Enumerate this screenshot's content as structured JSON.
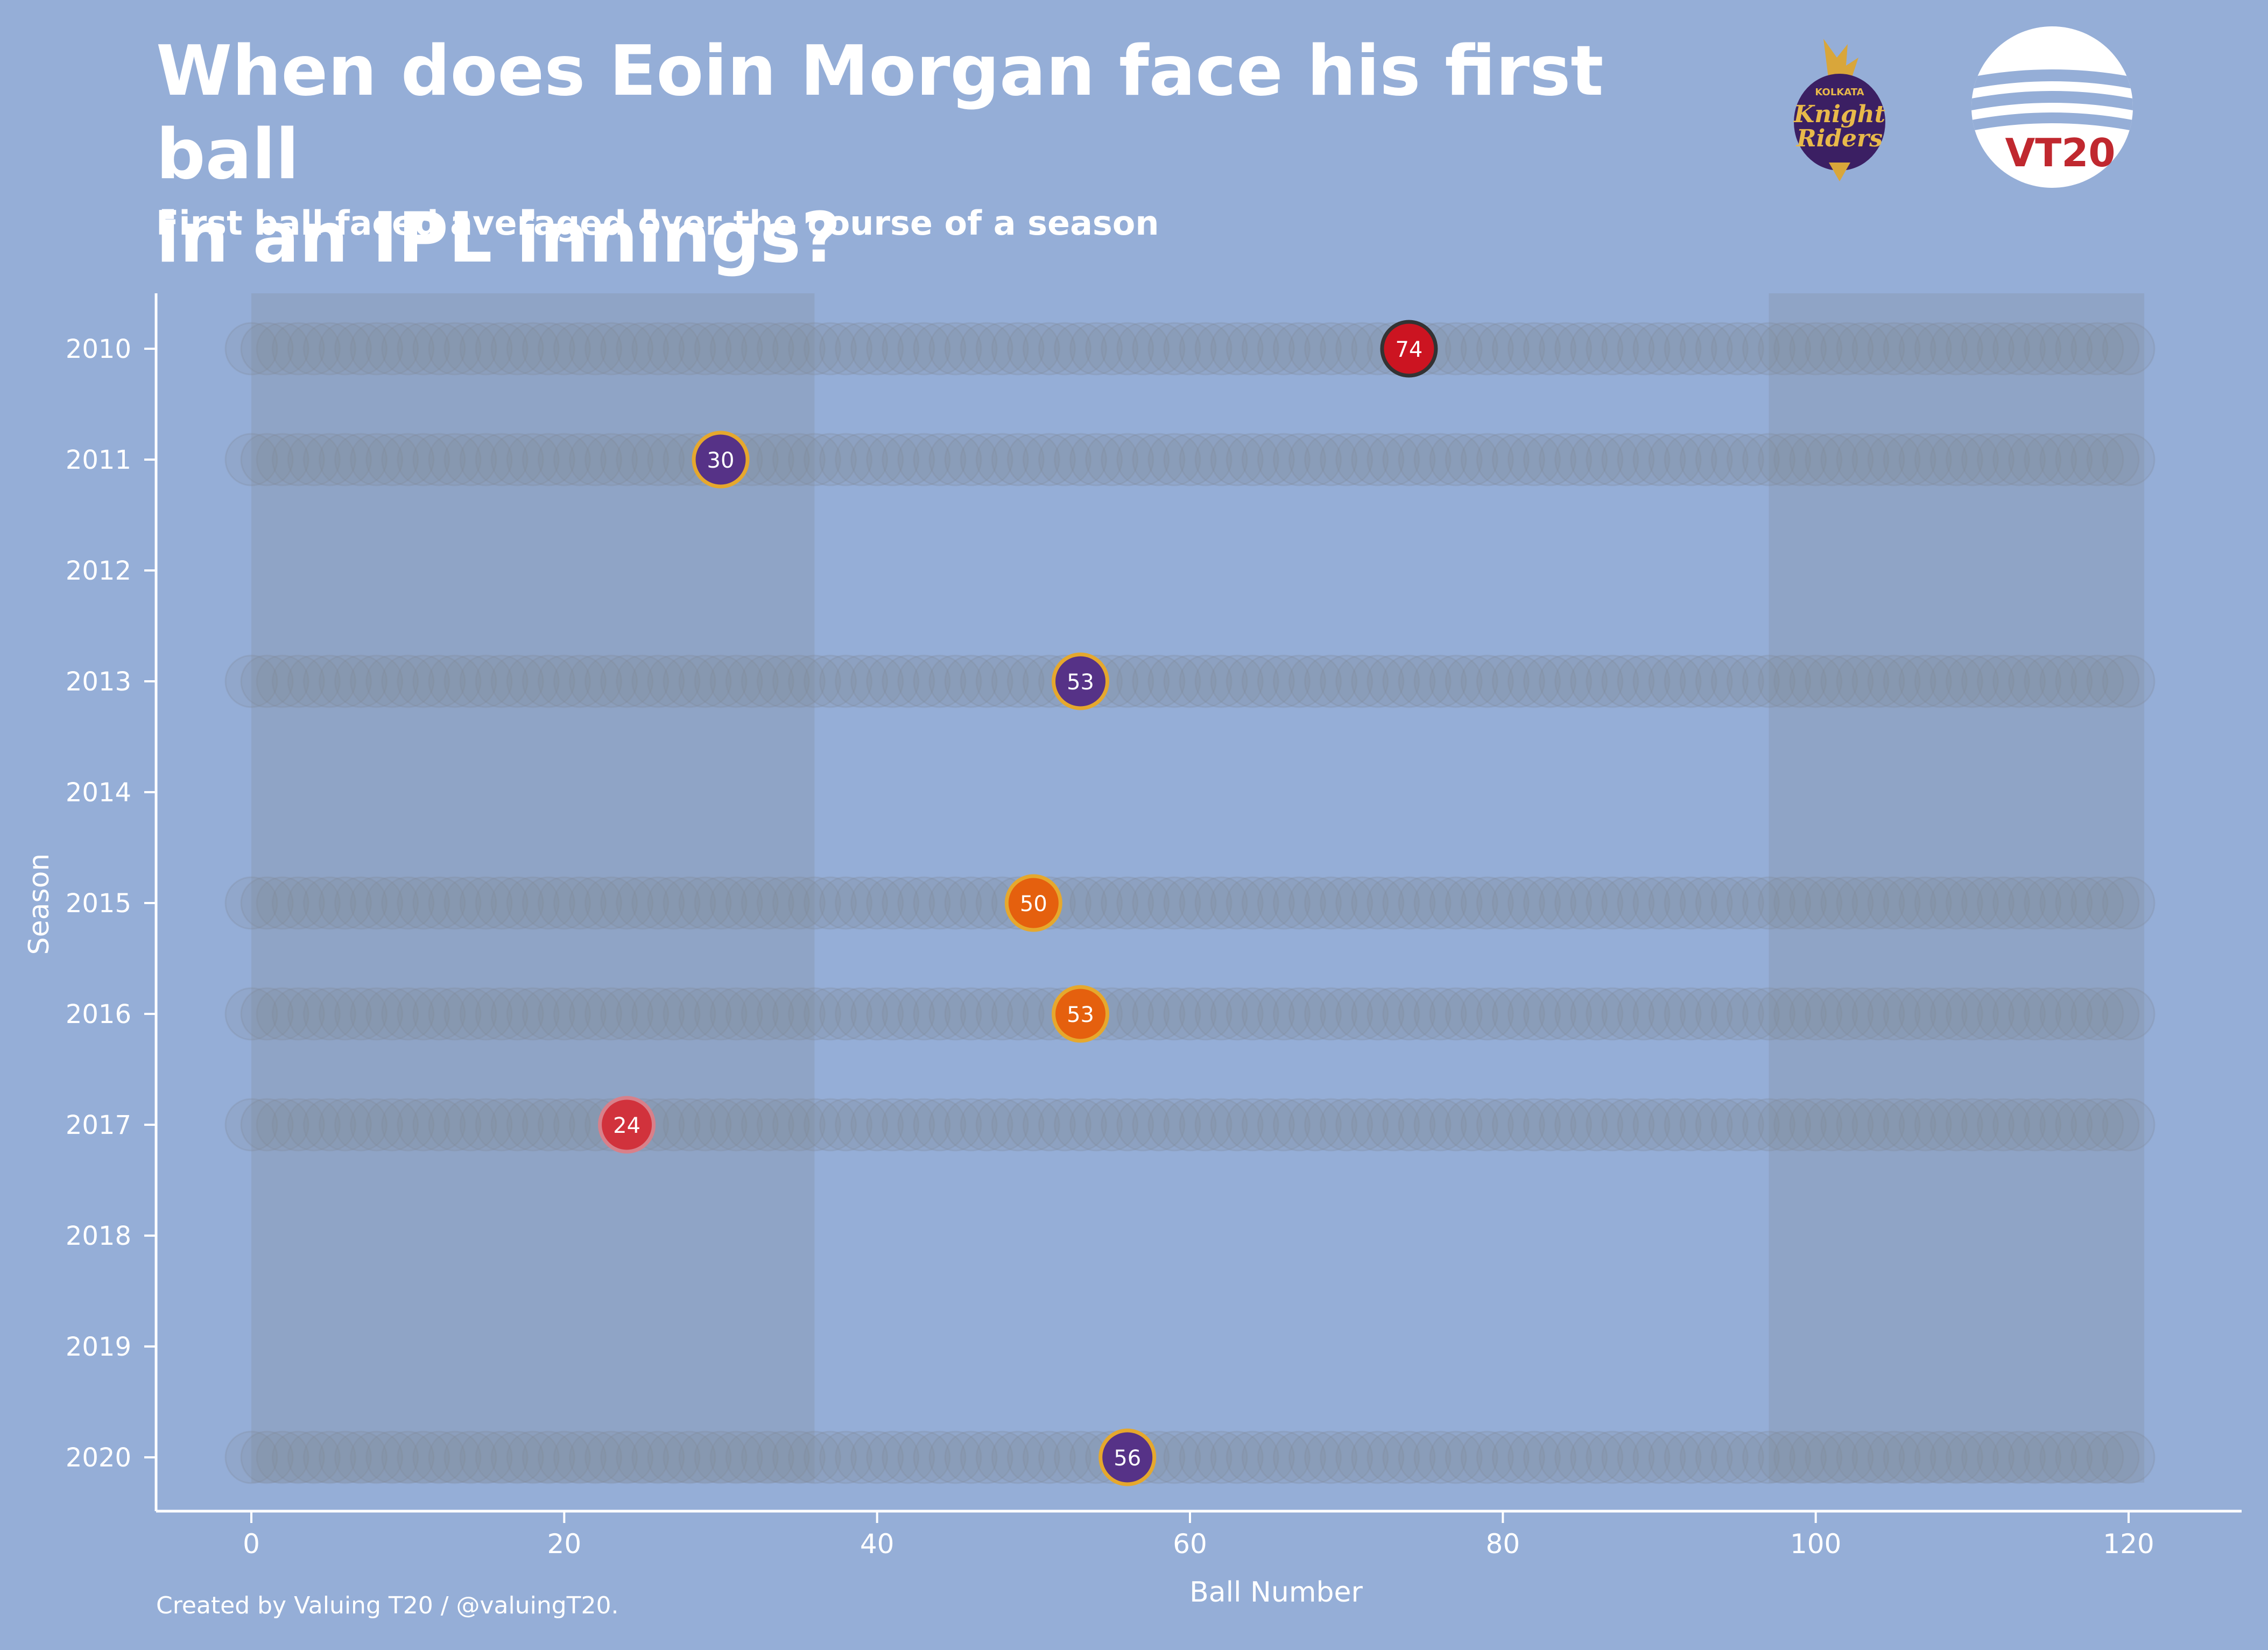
{
  "header": {
    "title_line1": "When does Eoin Morgan face his first ball",
    "title_line2": "in an IPL innings?",
    "subtitle": "First ball faced averaged over the course of a season"
  },
  "footer": {
    "credit": "Created by Valuing T20 / @valuingT20."
  },
  "logos": {
    "kkr": {
      "text_top": "KOLKATA",
      "text_main1": "Knight",
      "text_main2": "Riders"
    },
    "vt20": {
      "text": "VT20"
    }
  },
  "colors": {
    "background": "#95aed7",
    "shaded_band": "#8fa4c6",
    "track": "#7f8896",
    "axis": "#ffffff",
    "purple": "#563287",
    "orange": "#e5600e",
    "red": "#d1323c",
    "dark_red": "#cc1421",
    "gold_edge": "#e6a82d",
    "dark_edge": "#333333"
  },
  "chart_data": {
    "type": "scatter",
    "title": "When does Eoin Morgan face his first ball in an IPL innings?",
    "subtitle": "First ball faced averaged over the course of a season",
    "xlabel": "Ball Number",
    "ylabel": "Season",
    "xlim": [
      -6,
      127
    ],
    "x_ticks": [
      0,
      20,
      40,
      60,
      80,
      100,
      120
    ],
    "seasons": [
      "2010",
      "2011",
      "2012",
      "2013",
      "2014",
      "2015",
      "2016",
      "2017",
      "2018",
      "2019",
      "2020"
    ],
    "shaded_ranges": [
      [
        0,
        36
      ],
      [
        97,
        121
      ]
    ],
    "track_range": [
      0,
      120
    ],
    "points": [
      {
        "season": "2010",
        "x": 74,
        "label": "74",
        "fill": "#cc1421",
        "edge": "#333333"
      },
      {
        "season": "2011",
        "x": 30,
        "label": "30",
        "fill": "#563287",
        "edge": "#e6a82d"
      },
      {
        "season": "2013",
        "x": 53,
        "label": "53",
        "fill": "#563287",
        "edge": "#e6a82d"
      },
      {
        "season": "2015",
        "x": 50,
        "label": "50",
        "fill": "#e5600e",
        "edge": "#e6a82d"
      },
      {
        "season": "2016",
        "x": 53,
        "label": "53",
        "fill": "#e5600e",
        "edge": "#e6a82d"
      },
      {
        "season": "2017",
        "x": 24,
        "label": "24",
        "fill": "#d1323c",
        "edge": "#d8808a"
      },
      {
        "season": "2020",
        "x": 56,
        "label": "56",
        "fill": "#563287",
        "edge": "#e6a82d"
      }
    ],
    "grid": false,
    "legend": "none"
  }
}
